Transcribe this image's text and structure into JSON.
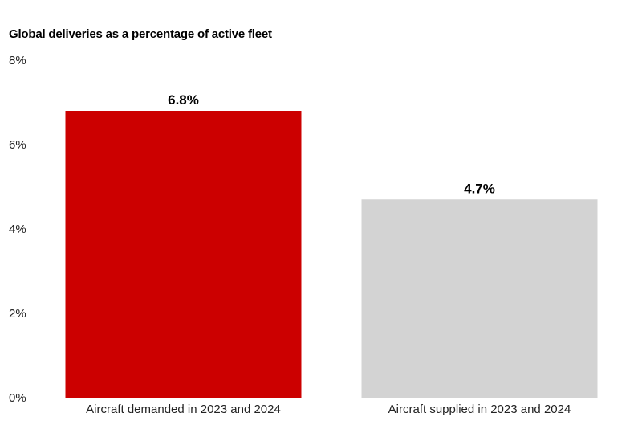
{
  "chart_data": {
    "type": "bar",
    "title": "Global deliveries as a percentage of active fleet",
    "xlabel": "",
    "ylabel": "",
    "categories": [
      "Aircraft demanded in 2023 and 2024",
      "Aircraft supplied in 2023 and 2024"
    ],
    "values": [
      6.8,
      4.7
    ],
    "value_labels": [
      "6.8%",
      "4.7%"
    ],
    "bar_colors": [
      "#cc0000",
      "#d3d3d3"
    ],
    "ylim": [
      0,
      8
    ],
    "yticks": [
      0,
      2,
      4,
      6,
      8
    ],
    "ytick_labels": [
      "0%",
      "2%",
      "4%",
      "6%",
      "8%"
    ],
    "grid": false,
    "legend": "none"
  }
}
